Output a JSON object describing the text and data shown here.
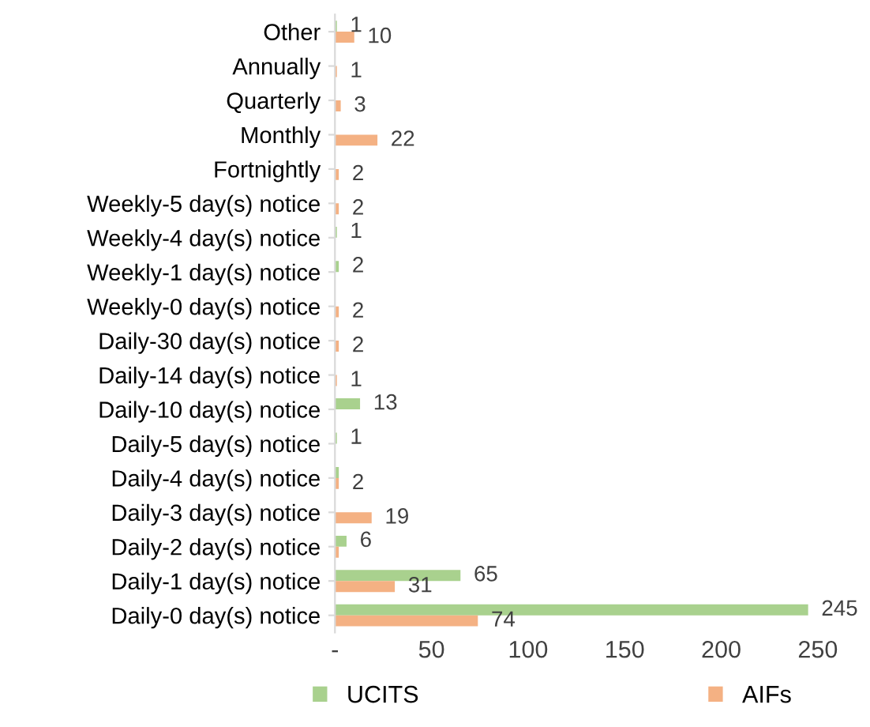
{
  "chart_data": {
    "type": "bar",
    "orientation": "horizontal",
    "categories": [
      "Other",
      "Annually",
      "Quarterly",
      "Monthly",
      "Fortnightly",
      "Weekly-5 day(s) notice",
      "Weekly-4 day(s) notice",
      "Weekly-1 day(s) notice",
      "Weekly-0 day(s) notice",
      "Daily-30 day(s) notice",
      "Daily-14 day(s) notice",
      "Daily-10 day(s) notice",
      "Daily-5 day(s) notice",
      "Daily-4 day(s) notice",
      "Daily-3 day(s) notice",
      "Daily-2 day(s) notice",
      "Daily-1 day(s) notice",
      "Daily-0 day(s) notice"
    ],
    "series": [
      {
        "name": "UCITS",
        "color": "#a9d18e",
        "values": [
          1,
          null,
          null,
          null,
          null,
          null,
          1,
          2,
          null,
          null,
          null,
          13,
          1,
          2,
          null,
          6,
          65,
          245
        ],
        "value_labels": [
          "1",
          null,
          null,
          null,
          null,
          null,
          "1",
          "2",
          null,
          null,
          null,
          "13",
          "1",
          null,
          null,
          "6",
          "65",
          "245"
        ]
      },
      {
        "name": "AIFs",
        "color": "#f4b183",
        "values": [
          10,
          1,
          3,
          22,
          2,
          2,
          null,
          null,
          2,
          2,
          1,
          null,
          null,
          2,
          19,
          2,
          31,
          74
        ],
        "value_labels": [
          "10",
          "1",
          "3",
          "22",
          "2",
          "2",
          null,
          null,
          "2",
          "2",
          "1",
          null,
          null,
          "2",
          "19",
          null,
          "31",
          "74"
        ]
      }
    ],
    "xlim": [
      0,
      250
    ],
    "xticks": [
      {
        "value": 0,
        "label": "-"
      },
      50,
      100,
      150,
      200,
      250
    ],
    "grid": false,
    "legend": "bottom"
  }
}
